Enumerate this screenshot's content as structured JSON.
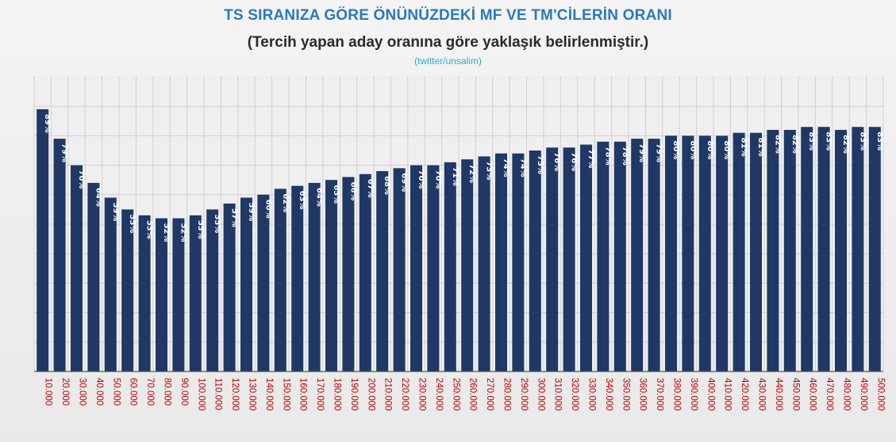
{
  "header": {
    "title": "TS SIRANIZA GÖRE ÖNÜNÜZDEKİ MF VE TM'CİLERİN ORANI",
    "subtitle": "(Tercih yapan aday oranına göre yaklaşık belirlenmiştir.)",
    "credit": "(twitter/unsalim)"
  },
  "colors": {
    "bar": "#1f3866",
    "bar_label": "#ffffff",
    "tick_label": "#c00000",
    "grid": "#d0d0d0",
    "axis": "#555555"
  },
  "chart_data": {
    "type": "bar",
    "title": "TS SIRANIZA GÖRE ÖNÜNÜZDEKİ MF VE TM'CİLERİN ORANI",
    "subtitle": "(Tercih yapan aday oranına göre yaklaşık belirlenmiştir.)",
    "xlabel": "",
    "ylabel": "",
    "ylim": [
      0,
      90
    ],
    "grid": true,
    "legend": "none",
    "categories": [
      "10.000",
      "20.000",
      "30.000",
      "40.000",
      "50.000",
      "60.000",
      "70.000",
      "80.000",
      "90.000",
      "100.000",
      "110.000",
      "120.000",
      "130.000",
      "140.000",
      "150.000",
      "160.000",
      "170.000",
      "180.000",
      "190.000",
      "200.000",
      "210.000",
      "220.000",
      "230.000",
      "240.000",
      "250.000",
      "260.000",
      "270.000",
      "280.000",
      "290.000",
      "300.000",
      "310.000",
      "320.000",
      "330.000",
      "340.000",
      "350.000",
      "360.000",
      "370.000",
      "380.000",
      "390.000",
      "400.000",
      "410.000",
      "420.000",
      "430.000",
      "440.000",
      "450.000",
      "460.000",
      "470.000",
      "480.000",
      "490.000",
      "500.000"
    ],
    "values": [
      89,
      79,
      70,
      64,
      59,
      55,
      53,
      52,
      52,
      53,
      55,
      57,
      59,
      60,
      62,
      63,
      64,
      65,
      66,
      67,
      68,
      69,
      70,
      70,
      71,
      72,
      73,
      74,
      74,
      75,
      76,
      76,
      77,
      78,
      78,
      79,
      79,
      80,
      80,
      80,
      80,
      81,
      81,
      82,
      82,
      83,
      83,
      82,
      83,
      83
    ],
    "data_labels": [
      "89%",
      "79%",
      "70%",
      "64%",
      "59%",
      "55%",
      "53%",
      "52%",
      "52%",
      "53%",
      "55%",
      "57%",
      "59%",
      "60%",
      "62%",
      "63%",
      "64%",
      "65%",
      "66%",
      "67%",
      "68%",
      "69%",
      "70%",
      "70%",
      "71%",
      "72%",
      "73%",
      "74%",
      "74%",
      "75%",
      "76%",
      "76%",
      "77%",
      "78%",
      "78%",
      "79%",
      "79%",
      "80%",
      "80%",
      "80%",
      "80%",
      "81%",
      "81%",
      "82%",
      "82%",
      "83%",
      "83%",
      "82%",
      "83%",
      "83%"
    ]
  }
}
